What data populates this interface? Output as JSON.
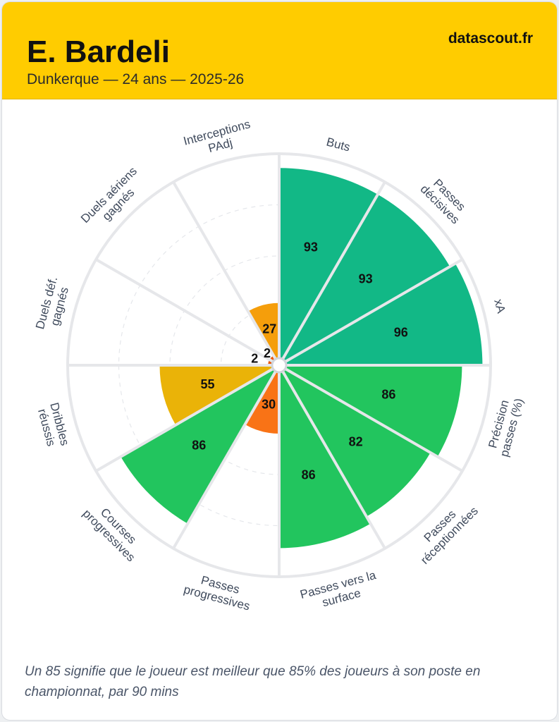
{
  "header": {
    "player_name": "E. Bardeli",
    "subtitle": "Dunkerque — 24 ans — 2025-26",
    "brand": "datascout.fr",
    "background_color": "#ffcc00"
  },
  "footnote": "Un 85 signifie que le joueur est meilleur que 85% des joueurs à son poste en championnat, par 90 mins",
  "chart_data": {
    "type": "polar-bar",
    "range": [
      0,
      100
    ],
    "grid": true,
    "categories": [
      "Buts",
      "Passes décisives",
      "xA",
      "Précision passes (%)",
      "Passes réceptionnées",
      "Passes vers la surface",
      "Passes progressives",
      "Courses progressives",
      "Dribbles réussis",
      "Duels déf. gagnés",
      "Duels aériens gagnés",
      "Interceptions PAdj"
    ],
    "values": [
      93,
      93,
      96,
      86,
      82,
      86,
      30,
      86,
      55,
      2,
      2,
      27
    ],
    "colors": [
      "#12b886",
      "#12b886",
      "#12b886",
      "#22c55e",
      "#22c55e",
      "#22c55e",
      "#f97316",
      "#22c55e",
      "#eab308",
      "#ea580c",
      "#ea580c",
      "#f59e0b"
    ],
    "color_scale": {
      "high": "#12b886",
      "good": "#22c55e",
      "average": "#eab308",
      "low": "#f59e0b",
      "very_low": "#ea580c"
    }
  }
}
